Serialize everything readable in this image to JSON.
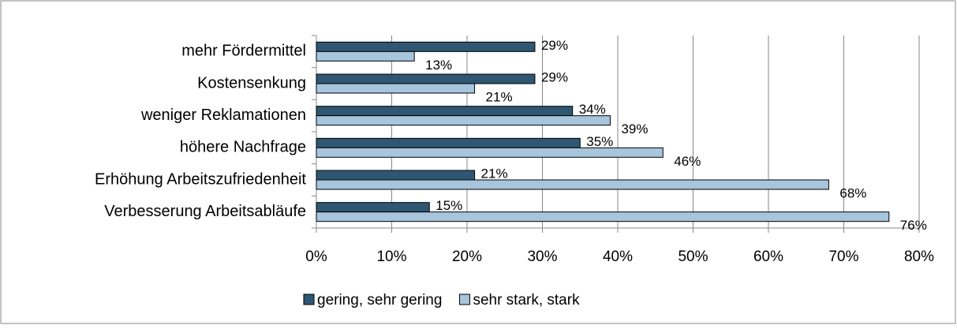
{
  "chart_data": {
    "type": "bar",
    "orientation": "horizontal",
    "categories": [
      "mehr Fördermittel",
      "Kostensenkung",
      "weniger Reklamationen",
      "höhere Nachfrage",
      "Erhöhung Arbeitszufriedenheit",
      "Verbesserung Arbeitsabläufe"
    ],
    "series": [
      {
        "name": "gering, sehr gering",
        "color": "#2f5773",
        "values": [
          29,
          29,
          34,
          35,
          21,
          15
        ],
        "value_labels": [
          "29%",
          "29%",
          "34%",
          "35%",
          "21%",
          "15%"
        ]
      },
      {
        "name": "sehr stark, stark",
        "color": "#a7c5dc",
        "values": [
          13,
          21,
          39,
          46,
          68,
          76
        ],
        "value_labels": [
          "13%",
          "21%",
          "39%",
          "46%",
          "68%",
          "76%"
        ]
      }
    ],
    "xlim": [
      0,
      80
    ],
    "xticks": [
      {
        "value": 0,
        "label": "0%"
      },
      {
        "value": 10,
        "label": "10%"
      },
      {
        "value": 20,
        "label": "20%"
      },
      {
        "value": 30,
        "label": "30%"
      },
      {
        "value": 40,
        "label": "40%"
      },
      {
        "value": 50,
        "label": "50%"
      },
      {
        "value": 60,
        "label": "60%"
      },
      {
        "value": 70,
        "label": "70%"
      },
      {
        "value": 80,
        "label": "80%"
      }
    ],
    "grid": true,
    "legend": "bottom"
  }
}
